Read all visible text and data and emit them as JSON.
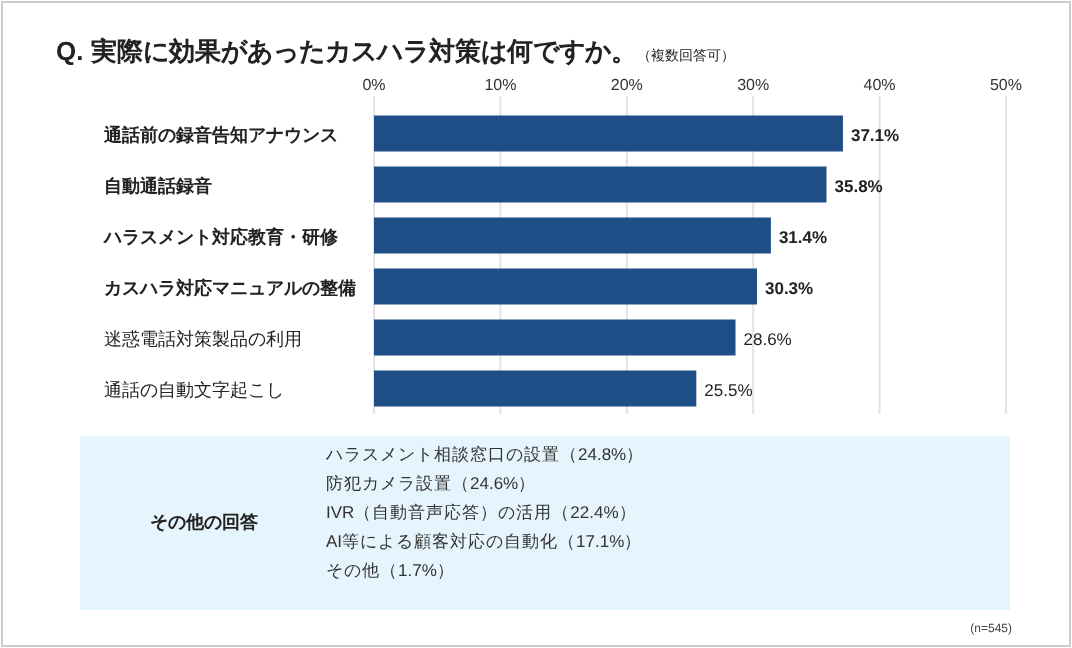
{
  "chart_data": {
    "type": "bar",
    "orientation": "horizontal",
    "title": "Q. 実際に効果があったカスハラ対策は何ですか。",
    "subtitle": "（複数回答可）",
    "categories": [
      "通話前の録音告知アナウンス",
      "自動通話録音",
      "ハラスメント対応教育・研修",
      "カスハラ対応マニュアルの整備",
      "迷惑電話対策製品の利用",
      "通話の自動文字起こし"
    ],
    "values": [
      37.1,
      35.8,
      31.4,
      30.3,
      28.6,
      25.5
    ],
    "color": "#1f4e86",
    "value_labels": [
      "37.1%",
      "35.8%",
      "31.4%",
      "30.3%",
      "28.6%",
      "25.5%"
    ],
    "xlim": [
      0,
      50
    ],
    "xticks": [
      {
        "value": 0,
        "label": "0%"
      },
      {
        "value": 10,
        "label": "10%"
      },
      {
        "value": 20,
        "label": "20%"
      },
      {
        "value": 30,
        "label": "30%"
      },
      {
        "value": 40,
        "label": "40%"
      },
      {
        "value": 50,
        "label": "50%"
      }
    ],
    "grid": "x",
    "annotations": [
      "その他の回答",
      "ハラスメント相談窓口の設置（24.8%）",
      "防犯カメラ設置（24.6%）",
      "IVR（自動音声応答）の活用（22.4%）",
      "AI等による顧客対応の自動化（17.1%）",
      "その他（1.7%）",
      "(n=545)"
    ]
  }
}
